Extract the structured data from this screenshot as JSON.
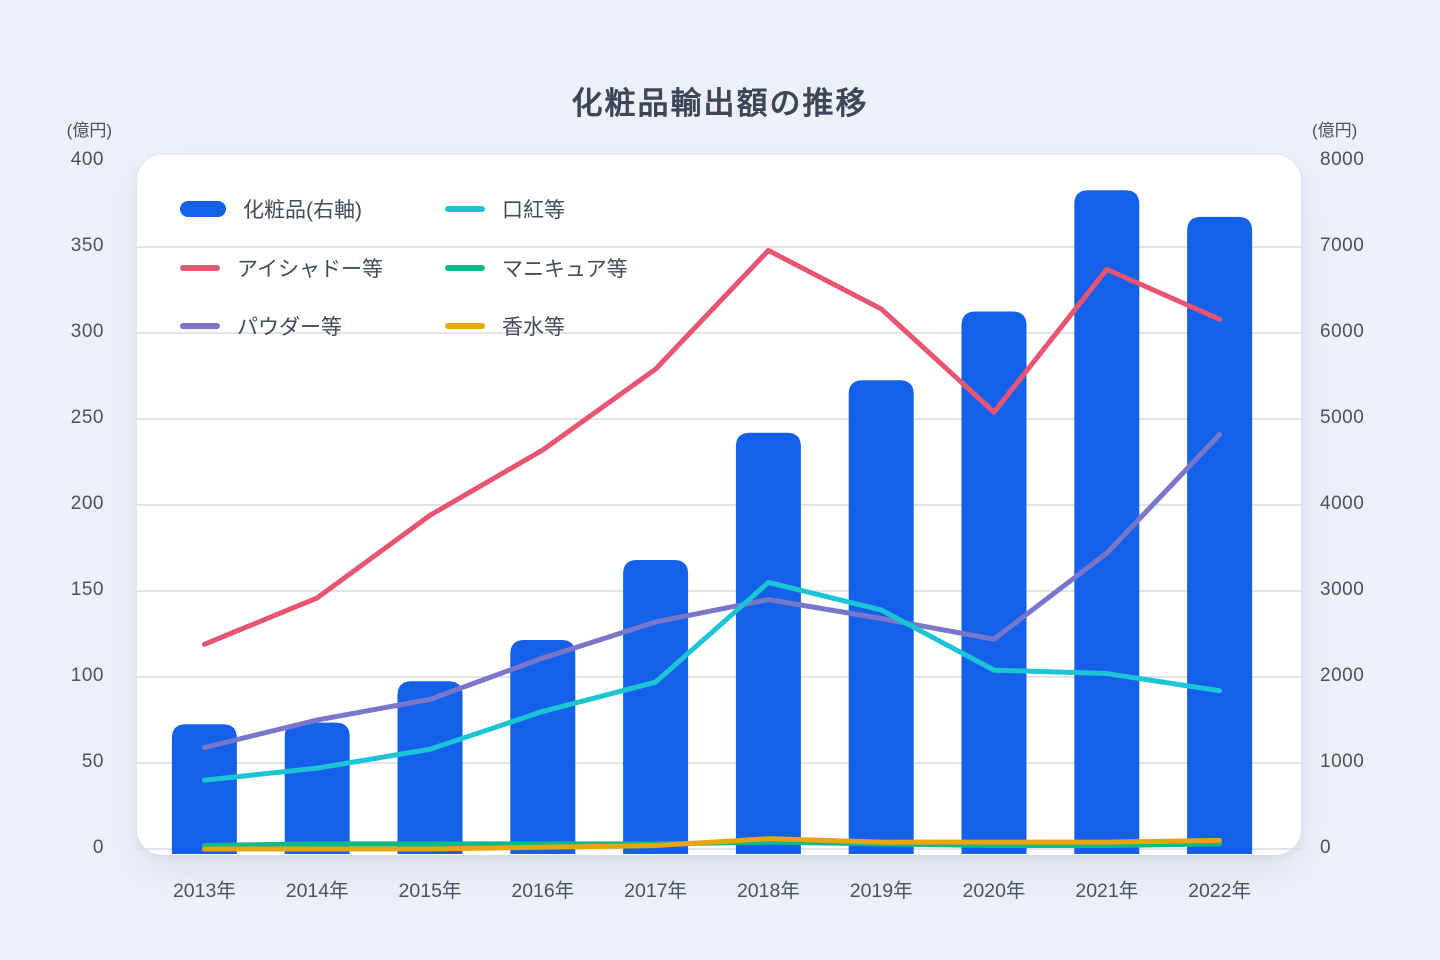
{
  "page": {
    "title": "化粧品輸出額の推移",
    "left_axis_unit": "(億円)",
    "right_axis_unit": "(億円)"
  },
  "colors": {
    "background": "#edf0f8",
    "card": "#ffffff",
    "grid": "#d9dce4",
    "title_text": "#3c4657",
    "axis_text": "#475263",
    "cosmetics": "#1560e8",
    "lipstick": "#1cc5d6",
    "eyeshadow": "#e85571",
    "manicure": "#0fb988",
    "powder": "#7877cb",
    "perfume": "#e8a50e"
  },
  "legend": [
    {
      "key": "cosmetics",
      "label": "化粧品(右軸)",
      "swatch": "bar"
    },
    {
      "key": "lipstick",
      "label": "口紅等",
      "swatch": "line"
    },
    {
      "key": "eyeshadow",
      "label": "アイシャドー等",
      "swatch": "line"
    },
    {
      "key": "manicure",
      "label": "マニキュア等",
      "swatch": "line"
    },
    {
      "key": "powder",
      "label": "パウダー等",
      "swatch": "line"
    },
    {
      "key": "perfume",
      "label": "香水等",
      "swatch": "line"
    }
  ],
  "chart_data": {
    "type": "combo",
    "title": "化粧品輸出額の推移",
    "categories": [
      "2013年",
      "2014年",
      "2015年",
      "2016年",
      "2017年",
      "2018年",
      "2019年",
      "2020年",
      "2021年",
      "2022年"
    ],
    "left_axis": {
      "unit": "(億円)",
      "min": 0,
      "max": 400,
      "tick_step": 50,
      "ticks": [
        400,
        350,
        300,
        250,
        200,
        150,
        100,
        50,
        0
      ]
    },
    "right_axis": {
      "unit": "(億円)",
      "min": 0,
      "max": 8000,
      "tick_step": 1000,
      "ticks": [
        8000,
        7000,
        6000,
        5000,
        4000,
        3000,
        2000,
        1000,
        0
      ]
    },
    "grid": true,
    "legend_position": "top-left-inside",
    "bar_series": {
      "key": "cosmetics",
      "name": "化粧品(右軸)",
      "axis": "right",
      "values": [
        1450,
        1470,
        1950,
        2430,
        3360,
        4840,
        5450,
        6250,
        7660,
        7350
      ]
    },
    "line_series": [
      {
        "key": "lipstick",
        "name": "口紅等",
        "axis": "left",
        "values": [
          40,
          47,
          58,
          80,
          97,
          155,
          139,
          104,
          102,
          92
        ]
      },
      {
        "key": "eyeshadow",
        "name": "アイシャドー等",
        "axis": "left",
        "values": [
          119,
          146,
          194,
          232,
          279,
          348,
          314,
          254,
          337,
          308
        ]
      },
      {
        "key": "manicure",
        "name": "マニキュア等",
        "axis": "left",
        "values": [
          2,
          3,
          3,
          3,
          3,
          4,
          3,
          2,
          2,
          3
        ]
      },
      {
        "key": "powder",
        "name": "パウダー等",
        "axis": "left",
        "values": [
          59,
          75,
          87,
          111,
          132,
          145,
          134,
          122,
          172,
          241
        ]
      },
      {
        "key": "perfume",
        "name": "香水等",
        "axis": "left",
        "values": [
          0,
          0,
          0,
          1,
          2,
          6,
          4,
          4,
          4,
          5
        ]
      }
    ]
  }
}
